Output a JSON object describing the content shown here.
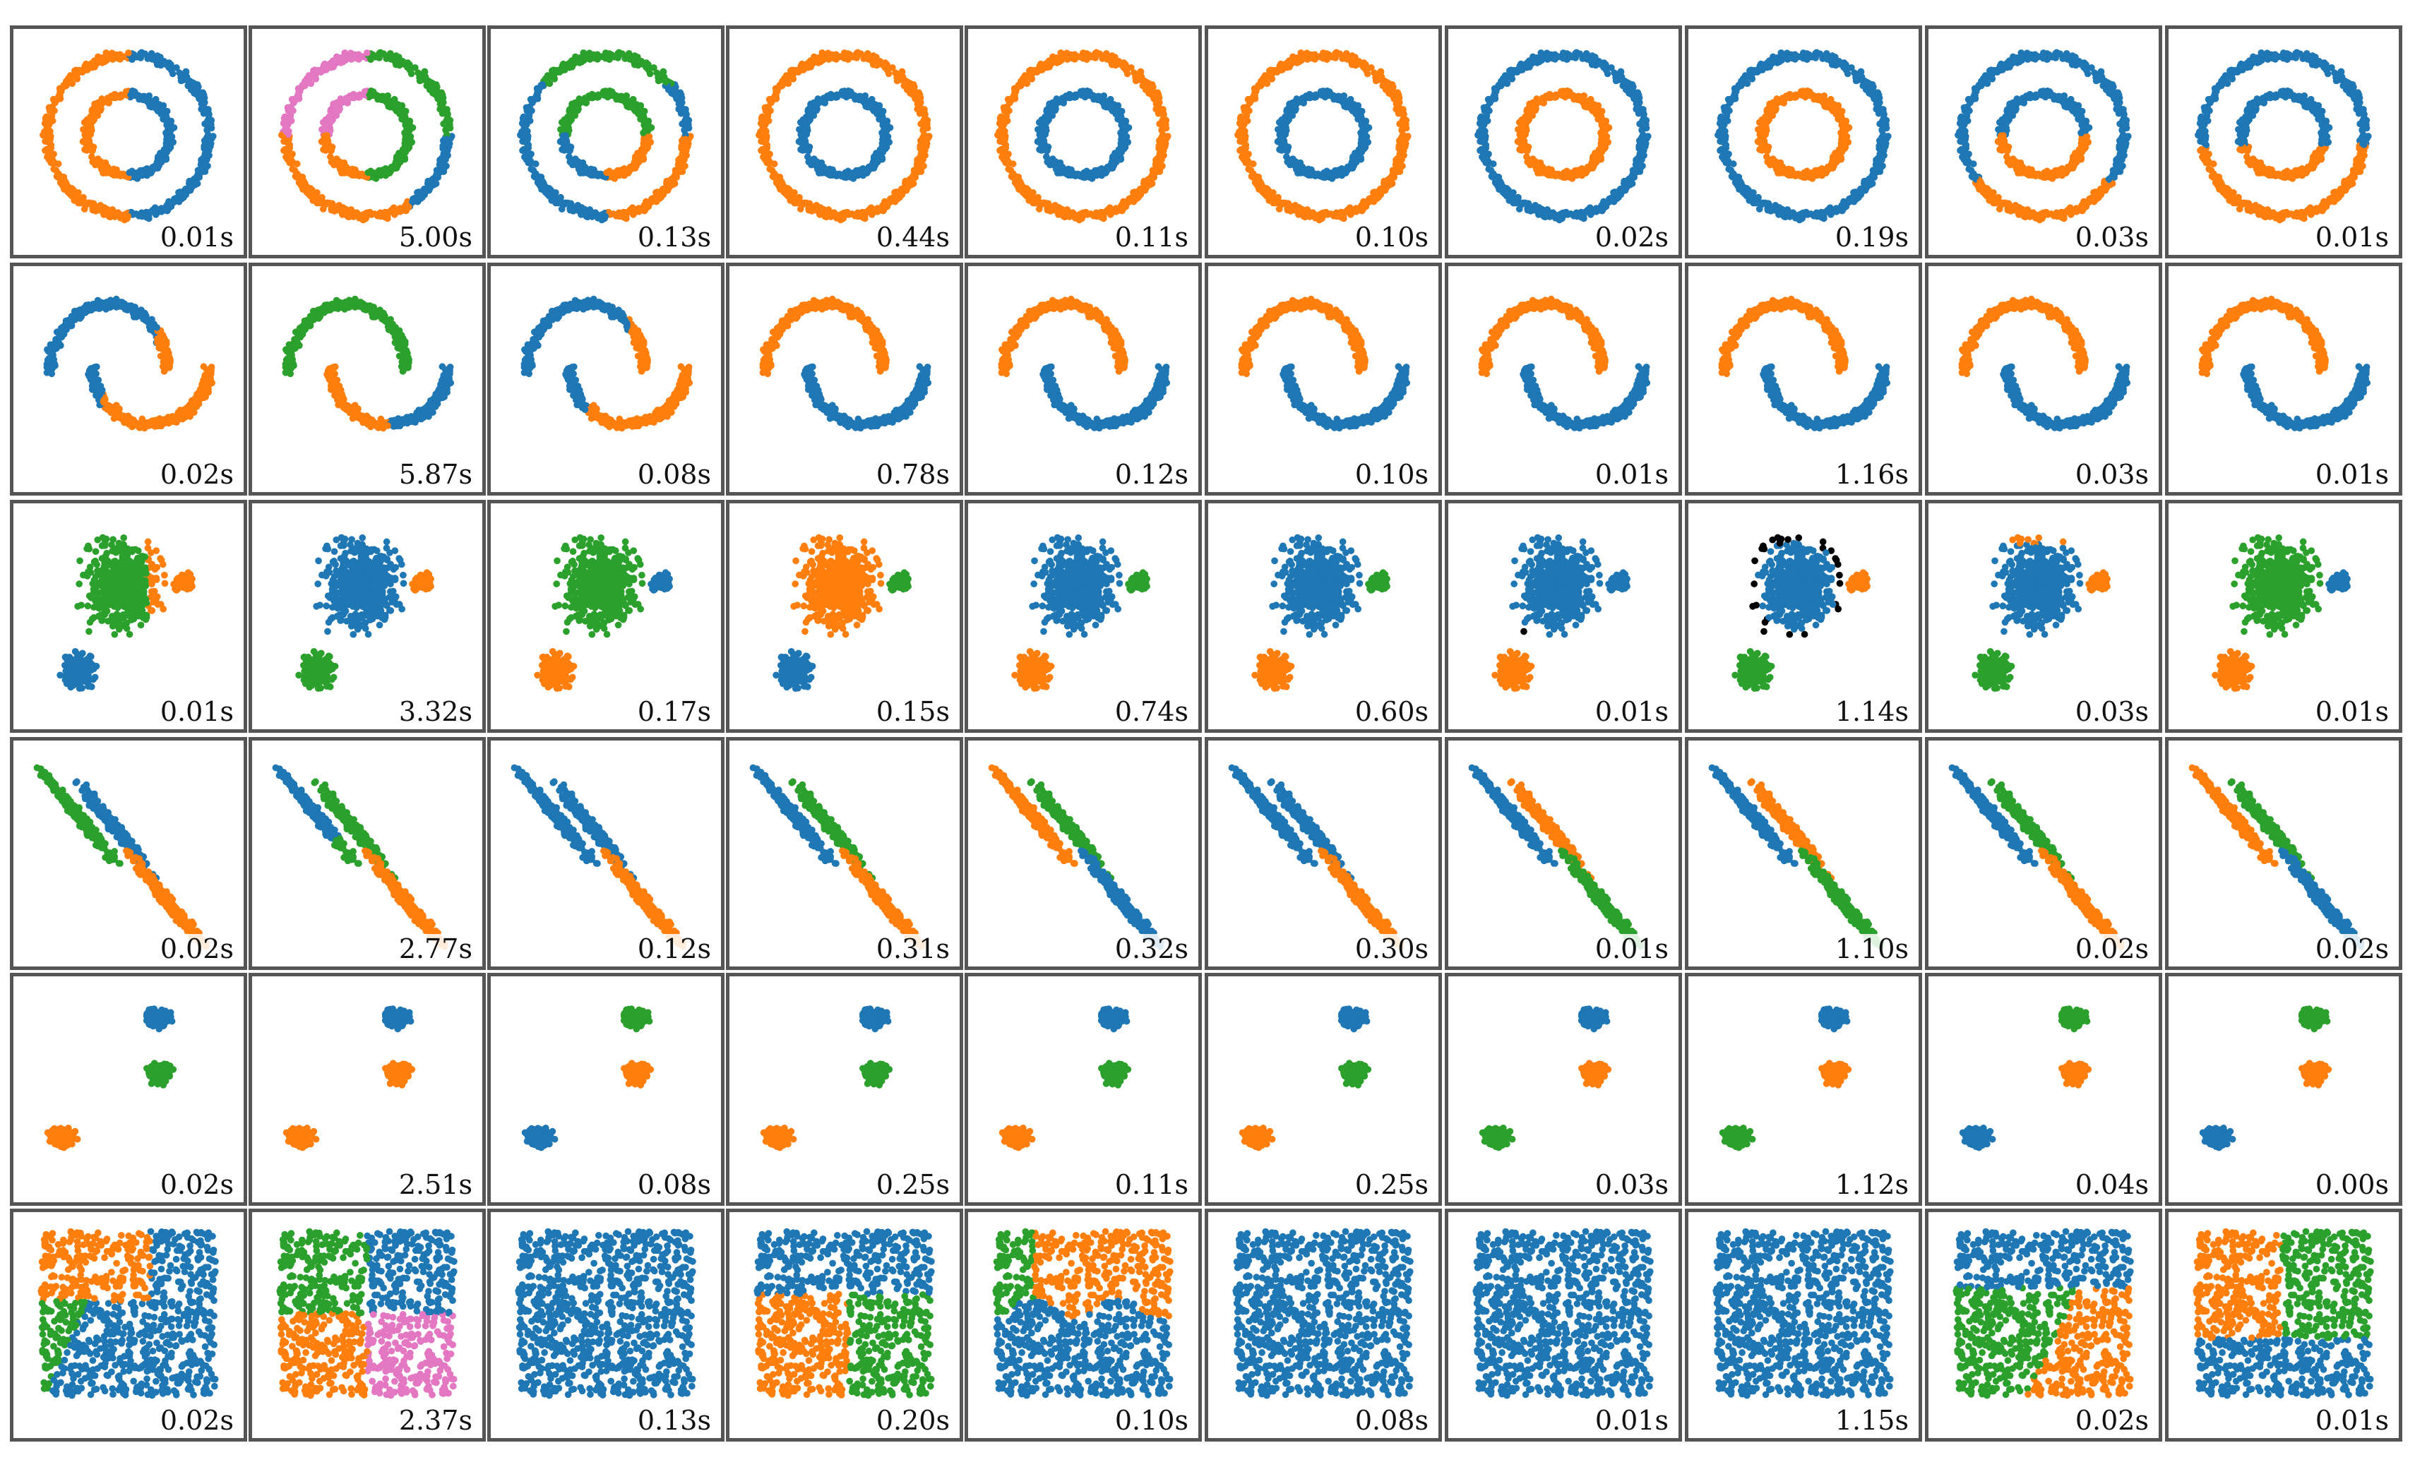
{
  "colors": {
    "blue": "#1f77b4",
    "orange": "#ff7f0e",
    "green": "#2ca02c",
    "pink": "#e377c2",
    "black": "#000000"
  },
  "chart_data": {
    "type": "scatter",
    "layout": "grid",
    "rows": 6,
    "columns": 10,
    "datasets": [
      "circles",
      "moons",
      "varied",
      "aniso",
      "blobs",
      "uniform"
    ],
    "cell_label": "runtime",
    "times": [
      [
        "0.01s",
        "5.00s",
        "0.13s",
        "0.44s",
        "0.11s",
        "0.10s",
        "0.02s",
        "0.19s",
        "0.03s",
        "0.01s"
      ],
      [
        "0.02s",
        "5.87s",
        "0.08s",
        "0.78s",
        "0.12s",
        "0.10s",
        "0.01s",
        "1.16s",
        "0.03s",
        "0.01s"
      ],
      [
        "0.01s",
        "3.32s",
        "0.17s",
        "0.15s",
        "0.74s",
        "0.60s",
        "0.01s",
        "1.14s",
        "0.03s",
        "0.01s"
      ],
      [
        "0.02s",
        "2.77s",
        "0.12s",
        "0.31s",
        "0.32s",
        "0.30s",
        "0.01s",
        "1.10s",
        "0.02s",
        "0.02s"
      ],
      [
        "0.02s",
        "2.51s",
        "0.08s",
        "0.25s",
        "0.11s",
        "0.25s",
        "0.03s",
        "1.12s",
        "0.04s",
        "0.00s"
      ],
      [
        "0.02s",
        "2.37s",
        "0.13s",
        "0.20s",
        "0.10s",
        "0.08s",
        "0.01s",
        "1.15s",
        "0.02s",
        "0.01s"
      ]
    ],
    "cluster_colors": {
      "circles": [
        {
          "outer_left": "orange",
          "outer_right": "blue",
          "inner_left": "orange",
          "inner_right": "blue"
        },
        {
          "outer_topleft": "pink",
          "outer_topright": "green",
          "outer_bottom": "orange",
          "inner_top": "pink",
          "inner_right": "green",
          "inner_bottom": "orange",
          "outer_right": "blue"
        },
        {
          "outer": "blue",
          "outer_top": "green",
          "inner_top": "green",
          "inner_bottom": "orange",
          "outer_bottom": "orange"
        },
        {
          "outer": "orange",
          "inner": "blue"
        },
        {
          "outer": "orange",
          "inner": "blue"
        },
        {
          "outer": "orange",
          "inner": "blue"
        },
        {
          "outer": "blue",
          "inner": "orange"
        },
        {
          "outer": "blue",
          "inner": "orange"
        },
        {
          "outer": "blue",
          "outer_bottom": "orange",
          "inner_top": "blue",
          "inner_bottom": "orange"
        },
        {
          "outer_top": "blue",
          "outer_bottom": "orange",
          "inner_top": "blue",
          "inner_bottom": "orange"
        }
      ],
      "moons": [
        [
          "blue",
          "orange"
        ],
        [
          "green",
          "blue+orange"
        ],
        [
          "blue",
          "orange"
        ],
        [
          "orange",
          "blue"
        ],
        [
          "orange",
          "blue"
        ],
        [
          "orange",
          "blue"
        ],
        [
          "orange",
          "blue"
        ],
        [
          "orange",
          "blue"
        ],
        [
          "orange",
          "blue"
        ],
        [
          "orange",
          "blue"
        ]
      ],
      "varied": [
        [
          "green",
          "orange",
          "blue"
        ],
        [
          "blue",
          "orange",
          "green"
        ],
        [
          "green",
          "blue",
          "orange"
        ],
        [
          "orange",
          "green",
          "blue"
        ],
        [
          "blue",
          "green",
          "orange"
        ],
        [
          "blue",
          "green",
          "orange"
        ],
        [
          "blue",
          "blue",
          "orange",
          "noise"
        ],
        [
          "blue",
          "orange",
          "green",
          "noise"
        ],
        [
          "blue",
          "orange",
          "green"
        ],
        [
          "green",
          "blue",
          "orange"
        ]
      ],
      "aniso": [
        [
          "green",
          "blue",
          "orange"
        ],
        [
          "blue",
          "green",
          "orange"
        ],
        [
          "blue",
          "blue",
          "orange"
        ],
        [
          "blue",
          "green",
          "orange"
        ],
        [
          "orange",
          "green",
          "blue"
        ],
        [
          "blue",
          "blue",
          "orange"
        ],
        [
          "blue",
          "orange",
          "green",
          "noise"
        ],
        [
          "blue",
          "orange",
          "green",
          "noise"
        ],
        [
          "blue",
          "green",
          "orange"
        ],
        [
          "orange",
          "green",
          "blue"
        ]
      ],
      "blobs": [
        [
          "blue",
          "green",
          "orange"
        ],
        [
          "blue",
          "orange",
          "orange"
        ],
        [
          "green",
          "orange",
          "blue"
        ],
        [
          "blue",
          "green",
          "orange"
        ],
        [
          "blue",
          "green",
          "orange"
        ],
        [
          "blue",
          "green",
          "orange"
        ],
        [
          "blue",
          "orange",
          "green"
        ],
        [
          "blue",
          "orange",
          "green"
        ],
        [
          "green",
          "orange",
          "blue"
        ],
        [
          "green",
          "orange",
          "blue"
        ]
      ],
      "uniform": [
        "orange-topleft|green-bottomleft|blue-right",
        "green-tl|blue-tr|orange-bl|pink-br",
        "blue",
        "blue-top|orange-bl|green-br",
        "green-tl|orange-tr|blue-bottom",
        "blue",
        "blue",
        "blue",
        "blue-top|green-bl|orange-br",
        "orange-tl|green-tr|blue-bottom"
      ]
    }
  }
}
